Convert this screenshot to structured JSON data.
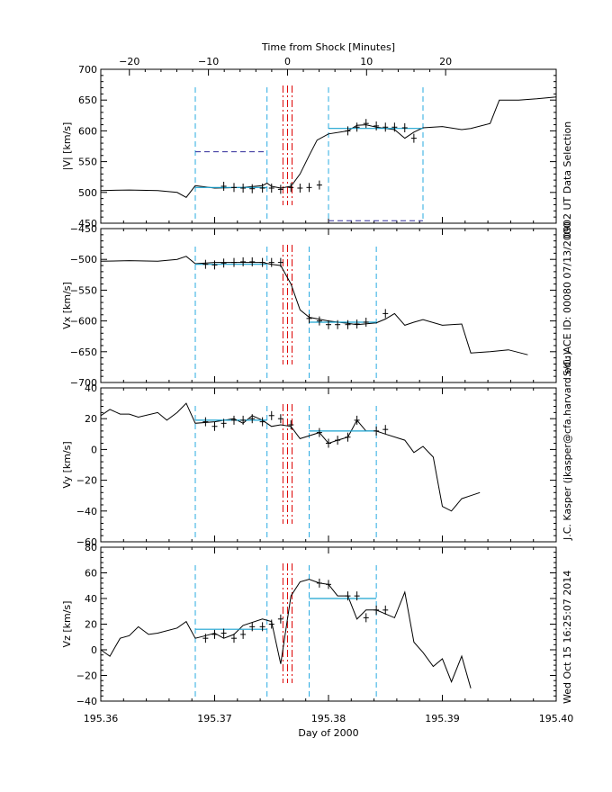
{
  "chart_data": {
    "type": "line",
    "top_axis_label": "Time from Shock [Minutes]",
    "top_ticks": [
      {
        "v": -20,
        "label": "−20"
      },
      {
        "v": -10,
        "label": "−10"
      },
      {
        "v": 0,
        "label": "0"
      },
      {
        "v": 10,
        "label": "10"
      },
      {
        "v": 20,
        "label": "20"
      }
    ],
    "xlabel": "Day of 2000",
    "xlim": [
      195.36,
      195.4
    ],
    "x_ticks": [
      "195.36",
      "195.37",
      "195.38",
      "195.39",
      "195.40"
    ],
    "side_labels": [
      "0902 UT Data Selection",
      "S/C: ACE ID: 00080 07/13/2000",
      "J.C. Kasper (jkasper@cfa.harvard.edu)",
      "Wed Oct 15 16:25:07 2014"
    ],
    "shock_day": 195.3764,
    "panels": [
      {
        "ylabel": "|V| [km/s]",
        "ylim": [
          450,
          700
        ],
        "ticks": [
          450,
          500,
          550,
          600,
          650,
          700
        ],
        "series": [
          [
            195.36,
            503
          ],
          [
            195.3625,
            504
          ],
          [
            195.365,
            503
          ],
          [
            195.3667,
            500
          ],
          [
            195.3675,
            492
          ],
          [
            195.3683,
            511
          ],
          [
            195.37,
            507
          ],
          [
            195.3725,
            508
          ],
          [
            195.3742,
            511
          ],
          [
            195.3746,
            515
          ],
          [
            195.375,
            510
          ],
          [
            195.3758,
            507
          ],
          [
            195.3767,
            510
          ],
          [
            195.3775,
            530
          ],
          [
            195.3783,
            560
          ],
          [
            195.379,
            585
          ],
          [
            195.38,
            595
          ],
          [
            195.3817,
            600
          ],
          [
            195.3825,
            609
          ],
          [
            195.3833,
            610
          ],
          [
            195.3842,
            606
          ],
          [
            195.385,
            604
          ],
          [
            195.3858,
            602
          ],
          [
            195.3867,
            588
          ],
          [
            195.3875,
            598
          ],
          [
            195.3883,
            605
          ],
          [
            195.39,
            607
          ],
          [
            195.3917,
            602
          ],
          [
            195.3925,
            604
          ],
          [
            195.3942,
            612
          ],
          [
            195.395,
            650
          ],
          [
            195.3967,
            650
          ],
          [
            195.3983,
            652
          ],
          [
            195.4,
            655
          ]
        ],
        "points": [
          [
            195.3708,
            510
          ],
          [
            195.3717,
            508
          ],
          [
            195.3725,
            507
          ],
          [
            195.3733,
            506
          ],
          [
            195.3742,
            507
          ],
          [
            195.375,
            507
          ],
          [
            195.3758,
            505
          ],
          [
            195.3767,
            508
          ],
          [
            195.3775,
            507
          ],
          [
            195.3783,
            508
          ],
          [
            195.3792,
            512
          ],
          [
            195.3817,
            600
          ],
          [
            195.3825,
            606
          ],
          [
            195.3833,
            612
          ],
          [
            195.3842,
            608
          ],
          [
            195.385,
            606
          ],
          [
            195.3858,
            606
          ],
          [
            195.3867,
            605
          ],
          [
            195.3875,
            588
          ]
        ],
        "upstream_fit": {
          "x": [
            195.3683,
            195.3746
          ],
          "y": 508
        },
        "downstream_fit": {
          "x": [
            195.38,
            195.3883
          ],
          "y": 604
        },
        "windows": [
          195.3683,
          195.3746,
          195.38,
          195.3883
        ],
        "purple_lines": [
          {
            "x": [
              195.3683,
              195.3746
            ],
            "y": 566
          },
          {
            "x": [
              195.38,
              195.3883
            ],
            "y": 454
          }
        ]
      },
      {
        "ylabel": "Vx [km/s]",
        "ylim": [
          -700,
          -450
        ],
        "ticks": [
          -700,
          -650,
          -600,
          -550,
          -500,
          -450
        ],
        "series": [
          [
            195.36,
            -503
          ],
          [
            195.3625,
            -502
          ],
          [
            195.365,
            -503
          ],
          [
            195.3667,
            -500
          ],
          [
            195.3675,
            -495
          ],
          [
            195.3683,
            -507
          ],
          [
            195.37,
            -505
          ],
          [
            195.3725,
            -505
          ],
          [
            195.3742,
            -505
          ],
          [
            195.375,
            -508
          ],
          [
            195.3758,
            -510
          ],
          [
            195.3767,
            -540
          ],
          [
            195.3775,
            -582
          ],
          [
            195.3783,
            -594
          ],
          [
            195.38,
            -600
          ],
          [
            195.3817,
            -604
          ],
          [
            195.3825,
            -606
          ],
          [
            195.3842,
            -603
          ],
          [
            195.385,
            -597
          ],
          [
            195.3858,
            -588
          ],
          [
            195.3867,
            -607
          ],
          [
            195.3875,
            -602
          ],
          [
            195.3883,
            -598
          ],
          [
            195.39,
            -607
          ],
          [
            195.3917,
            -605
          ],
          [
            195.3925,
            -652
          ],
          [
            195.3942,
            -650
          ],
          [
            195.3958,
            -647
          ],
          [
            195.3975,
            -655
          ]
        ],
        "points": [
          [
            195.3692,
            -508
          ],
          [
            195.37,
            -509
          ],
          [
            195.3708,
            -506
          ],
          [
            195.3717,
            -505
          ],
          [
            195.3725,
            -504
          ],
          [
            195.3733,
            -504
          ],
          [
            195.3742,
            -505
          ],
          [
            195.375,
            -505
          ],
          [
            195.3758,
            -505
          ],
          [
            195.3783,
            -596
          ],
          [
            195.3792,
            -600
          ],
          [
            195.38,
            -606
          ],
          [
            195.3808,
            -606
          ],
          [
            195.3817,
            -606
          ],
          [
            195.3825,
            -605
          ],
          [
            195.3833,
            -602
          ],
          [
            195.385,
            -588
          ]
        ],
        "upstream_fit": {
          "x": [
            195.3683,
            195.3746
          ],
          "y": -508
        },
        "downstream_fit": {
          "x": [
            195.3783,
            195.3842
          ],
          "y": -602
        },
        "windows": [
          195.3683,
          195.3746,
          195.3783,
          195.3842
        ],
        "purple_lines": []
      },
      {
        "ylabel": "Vy [km/s]",
        "ylim": [
          -60,
          40
        ],
        "ticks": [
          -60,
          -40,
          -20,
          0,
          20,
          40
        ],
        "series": [
          [
            195.36,
            22
          ],
          [
            195.3608,
            26
          ],
          [
            195.3617,
            23
          ],
          [
            195.3625,
            23
          ],
          [
            195.3633,
            21
          ],
          [
            195.365,
            24
          ],
          [
            195.3658,
            19
          ],
          [
            195.3667,
            24
          ],
          [
            195.3675,
            30
          ],
          [
            195.3683,
            17
          ],
          [
            195.37,
            18
          ],
          [
            195.3717,
            20
          ],
          [
            195.3725,
            17
          ],
          [
            195.3733,
            22
          ],
          [
            195.3742,
            19
          ],
          [
            195.375,
            15
          ],
          [
            195.3758,
            16
          ],
          [
            195.3767,
            15
          ],
          [
            195.3775,
            7
          ],
          [
            195.3792,
            11
          ],
          [
            195.38,
            4
          ],
          [
            195.3808,
            6
          ],
          [
            195.3817,
            8
          ],
          [
            195.3825,
            19
          ],
          [
            195.3833,
            12
          ],
          [
            195.3842,
            12
          ],
          [
            195.385,
            10
          ],
          [
            195.3867,
            6
          ],
          [
            195.3875,
            -2
          ],
          [
            195.3883,
            2
          ],
          [
            195.3892,
            -5
          ],
          [
            195.39,
            -37
          ],
          [
            195.3908,
            -40
          ],
          [
            195.3917,
            -32
          ],
          [
            195.3925,
            -30
          ],
          [
            195.3933,
            -28
          ]
        ],
        "points": [
          [
            195.3692,
            18
          ],
          [
            195.37,
            15
          ],
          [
            195.3708,
            17
          ],
          [
            195.3717,
            19
          ],
          [
            195.3725,
            19
          ],
          [
            195.3733,
            20
          ],
          [
            195.3742,
            18
          ],
          [
            195.375,
            22
          ],
          [
            195.3758,
            20
          ],
          [
            195.3767,
            16
          ],
          [
            195.3792,
            11
          ],
          [
            195.38,
            4
          ],
          [
            195.3808,
            6
          ],
          [
            195.3817,
            8
          ],
          [
            195.3825,
            19
          ],
          [
            195.3842,
            12
          ],
          [
            195.385,
            13
          ]
        ],
        "upstream_fit": {
          "x": [
            195.3683,
            195.3746
          ],
          "y": 19
        },
        "downstream_fit": {
          "x": [
            195.3783,
            195.3842
          ],
          "y": 12
        },
        "windows": [
          195.3683,
          195.3746,
          195.3783,
          195.3842
        ],
        "purple_lines": []
      },
      {
        "ylabel": "Vz [km/s]",
        "ylim": [
          -40,
          80
        ],
        "ticks": [
          -40,
          -20,
          0,
          20,
          40,
          60,
          80
        ],
        "series": [
          [
            195.36,
            0
          ],
          [
            195.3608,
            -5
          ],
          [
            195.3617,
            9
          ],
          [
            195.3625,
            11
          ],
          [
            195.3633,
            18
          ],
          [
            195.3642,
            12
          ],
          [
            195.365,
            13
          ],
          [
            195.3667,
            17
          ],
          [
            195.3675,
            22
          ],
          [
            195.3683,
            9
          ],
          [
            195.3692,
            11
          ],
          [
            195.37,
            13
          ],
          [
            195.3708,
            9
          ],
          [
            195.3717,
            12
          ],
          [
            195.3725,
            19
          ],
          [
            195.3742,
            24
          ],
          [
            195.375,
            22
          ],
          [
            195.3758,
            -11
          ],
          [
            195.3767,
            42
          ],
          [
            195.3775,
            53
          ],
          [
            195.3783,
            55
          ],
          [
            195.3792,
            52
          ],
          [
            195.38,
            51
          ],
          [
            195.3808,
            42
          ],
          [
            195.3817,
            42
          ],
          [
            195.3825,
            24
          ],
          [
            195.3833,
            31
          ],
          [
            195.3842,
            31
          ],
          [
            195.385,
            28
          ],
          [
            195.3858,
            25
          ],
          [
            195.3867,
            45
          ],
          [
            195.3875,
            6
          ],
          [
            195.3883,
            -2
          ],
          [
            195.3892,
            -13
          ],
          [
            195.39,
            -7
          ],
          [
            195.3908,
            -25
          ],
          [
            195.3917,
            -5
          ],
          [
            195.3925,
            -30
          ]
        ],
        "points": [
          [
            195.3692,
            9
          ],
          [
            195.37,
            12
          ],
          [
            195.3708,
            13
          ],
          [
            195.3717,
            9
          ],
          [
            195.3725,
            12
          ],
          [
            195.3733,
            18
          ],
          [
            195.3742,
            18
          ],
          [
            195.375,
            20
          ],
          [
            195.3758,
            24
          ],
          [
            195.3792,
            52
          ],
          [
            195.38,
            51
          ],
          [
            195.3817,
            42
          ],
          [
            195.3825,
            42
          ],
          [
            195.3833,
            25
          ],
          [
            195.3842,
            31
          ],
          [
            195.385,
            31
          ]
        ],
        "upstream_fit": {
          "x": [
            195.3683,
            195.3746
          ],
          "y": 16
        },
        "downstream_fit": {
          "x": [
            195.3783,
            195.3842
          ],
          "y": 40
        },
        "windows": [
          195.3683,
          195.3746,
          195.3783,
          195.3842
        ],
        "purple_lines": []
      }
    ]
  },
  "colors": {
    "axis": "#000000",
    "data": "#000000",
    "fit": "#1aa3d0",
    "window": "#29abe2",
    "shock": "#dd0000",
    "purple": "#2e2a9a"
  }
}
